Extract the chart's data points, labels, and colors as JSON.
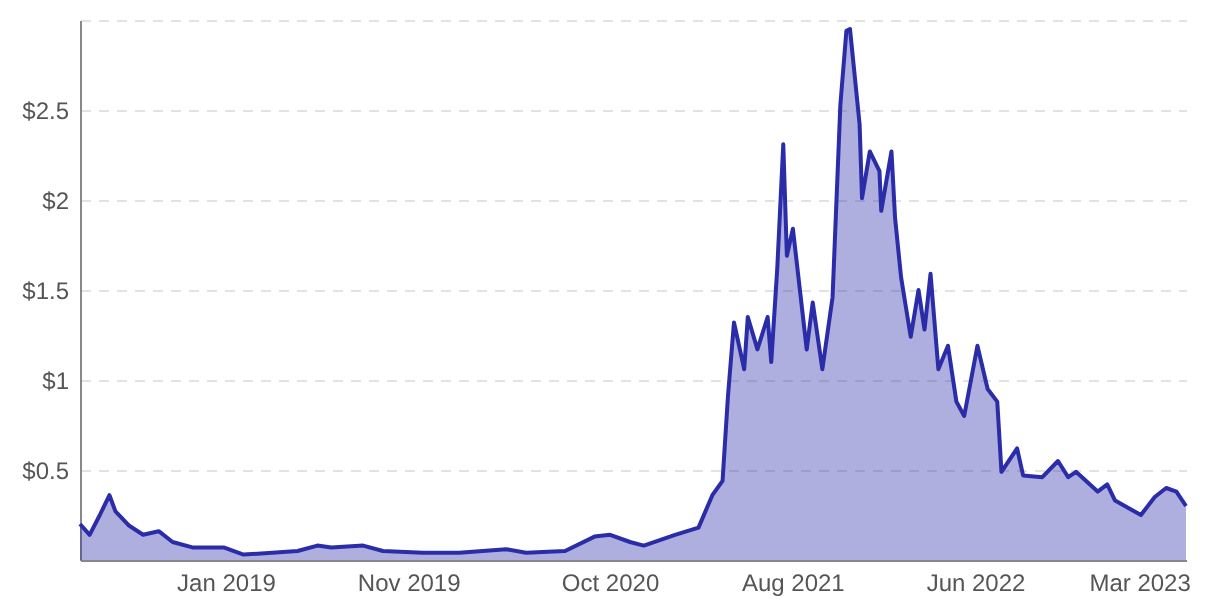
{
  "chart_data": {
    "type": "area",
    "x": [
      "2018-05-04",
      "2018-05-20",
      "2018-06-06",
      "2018-06-22",
      "2018-07-02",
      "2018-07-25",
      "2018-08-17",
      "2018-09-12",
      "2018-10-05",
      "2018-11-07",
      "2018-12-29",
      "2019-01-31",
      "2019-05-01",
      "2019-06-03",
      "2019-06-26",
      "2019-08-18",
      "2019-09-20",
      "2019-11-25",
      "2020-01-25",
      "2020-04-12",
      "2020-05-15",
      "2020-07-19",
      "2020-09-06",
      "2020-10-02",
      "2020-11-04",
      "2020-11-27",
      "2021-01-18",
      "2021-02-26",
      "2021-03-21",
      "2021-04-07",
      "2021-04-16",
      "2021-04-26",
      "2021-05-13",
      "2021-05-19",
      "2021-06-04",
      "2021-06-21",
      "2021-06-27",
      "2021-07-07",
      "2021-07-17",
      "2021-07-23",
      "2021-08-02",
      "2021-08-25",
      "2021-09-04",
      "2021-09-20",
      "2021-10-07",
      "2021-10-20",
      "2021-10-30",
      "2021-11-05",
      "2021-11-21",
      "2021-11-25",
      "2021-12-08",
      "2021-12-24",
      "2021-12-27",
      "2022-01-13",
      "2022-01-19",
      "2022-01-29",
      "2022-02-14",
      "2022-02-27",
      "2022-03-09",
      "2022-03-19",
      "2022-04-01",
      "2022-04-17",
      "2022-05-01",
      "2022-05-14",
      "2022-06-05",
      "2022-06-22",
      "2022-07-08",
      "2022-07-15",
      "2022-08-10",
      "2022-08-20",
      "2022-09-21",
      "2022-10-17",
      "2022-11-03",
      "2022-11-16",
      "2022-12-22",
      "2023-01-07",
      "2023-01-20",
      "2023-03-04",
      "2023-03-27",
      "2023-04-15",
      "2023-05-02",
      "2023-05-18"
    ],
    "series": [
      {
        "color": "#2b2ca8",
        "values": [
          0.2,
          0.14,
          0.25,
          0.36,
          0.27,
          0.19,
          0.14,
          0.16,
          0.1,
          0.07,
          0.07,
          0.03,
          0.05,
          0.08,
          0.07,
          0.08,
          0.05,
          0.04,
          0.04,
          0.06,
          0.04,
          0.05,
          0.13,
          0.14,
          0.1,
          0.08,
          0.14,
          0.18,
          0.36,
          0.44,
          0.91,
          1.32,
          1.06,
          1.35,
          1.17,
          1.35,
          1.1,
          1.62,
          2.31,
          1.69,
          1.84,
          1.17,
          1.43,
          1.06,
          1.46,
          2.53,
          2.94,
          2.95,
          2.42,
          2.01,
          2.27,
          2.16,
          1.94,
          2.27,
          1.9,
          1.57,
          1.24,
          1.5,
          1.28,
          1.59,
          1.06,
          1.19,
          0.88,
          0.8,
          1.19,
          0.95,
          0.88,
          0.49,
          0.62,
          0.47,
          0.46,
          0.55,
          0.46,
          0.49,
          0.38,
          0.42,
          0.33,
          0.25,
          0.35,
          0.4,
          0.38,
          0.3
        ]
      }
    ],
    "xlim": [
      "2018-05-04",
      "2023-05-18"
    ],
    "xticks": [
      {
        "value": "2019-01-01",
        "label": "Jan 2019"
      },
      {
        "value": "2019-11-01",
        "label": "Nov 2019"
      },
      {
        "value": "2020-10-01",
        "label": "Oct 2020"
      },
      {
        "value": "2021-08-01",
        "label": "Aug 2021"
      },
      {
        "value": "2022-06-01",
        "label": "Jun 2022"
      },
      {
        "value": "2023-03-01",
        "label": "Mar 2023"
      }
    ],
    "ylim": [
      0,
      3
    ],
    "yticks": [
      {
        "value": 0.5,
        "label": "$0.5"
      },
      {
        "value": 1,
        "label": "$1"
      },
      {
        "value": 1.5,
        "label": "$1.5"
      },
      {
        "value": 2,
        "label": "$2"
      },
      {
        "value": 2.5,
        "label": "$2.5"
      },
      {
        "value": 3,
        "label": null
      }
    ],
    "grid": "y"
  }
}
